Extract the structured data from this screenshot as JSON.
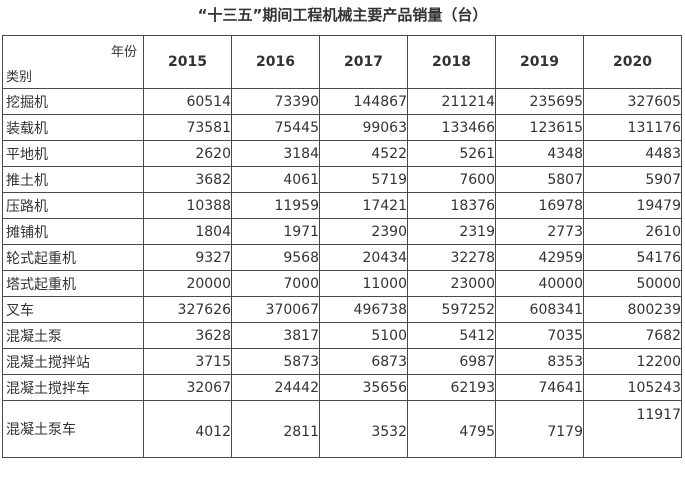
{
  "title": "“十三五”期间工程机械主要产品销量（台）",
  "header": {
    "corner_top": "年份",
    "corner_bottom": "类别",
    "years": [
      "2015",
      "2016",
      "2017",
      "2018",
      "2019",
      "2020"
    ]
  },
  "rows": [
    {
      "category": "挖掘机",
      "values": [
        "60514",
        "73390",
        "144867",
        "211214",
        "235695",
        "327605"
      ]
    },
    {
      "category": "装载机",
      "values": [
        "73581",
        "75445",
        "99063",
        "133466",
        "123615",
        "131176"
      ]
    },
    {
      "category": "平地机",
      "values": [
        "2620",
        "3184",
        "4522",
        "5261",
        "4348",
        "4483"
      ]
    },
    {
      "category": "推土机",
      "values": [
        "3682",
        "4061",
        "5719",
        "7600",
        "5807",
        "5907"
      ]
    },
    {
      "category": "压路机",
      "values": [
        "10388",
        "11959",
        "17421",
        "18376",
        "16978",
        "19479"
      ]
    },
    {
      "category": "摊铺机",
      "values": [
        "1804",
        "1971",
        "2390",
        "2319",
        "2773",
        "2610"
      ]
    },
    {
      "category": "轮式起重机",
      "values": [
        "9327",
        "9568",
        "20434",
        "32278",
        "42959",
        "54176"
      ]
    },
    {
      "category": "塔式起重机",
      "values": [
        "20000",
        "7000",
        "11000",
        "23000",
        "40000",
        "50000"
      ]
    },
    {
      "category": "叉车",
      "values": [
        "327626",
        "370067",
        "496738",
        "597252",
        "608341",
        "800239"
      ]
    },
    {
      "category": "混凝土泵",
      "values": [
        "3628",
        "3817",
        "5100",
        "5412",
        "7035",
        "7682"
      ]
    },
    {
      "category": "混凝土搅拌站",
      "values": [
        "3715",
        "5873",
        "6873",
        "6987",
        "8353",
        "12200"
      ]
    },
    {
      "category": "混凝土搅拌车",
      "values": [
        "32067",
        "24442",
        "35656",
        "62193",
        "74641",
        "105243"
      ]
    },
    {
      "category": "混凝土泵车",
      "values": [
        "4012",
        "2811",
        "3532",
        "4795",
        "7179",
        "11917"
      ]
    }
  ]
}
